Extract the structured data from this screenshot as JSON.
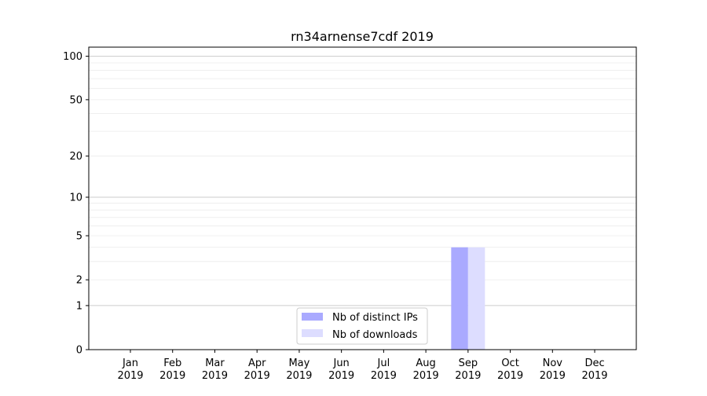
{
  "chart_data": {
    "type": "bar",
    "title": "rn34arnense7cdf 2019",
    "xlabel": "",
    "ylabel": "",
    "yscale": "log(1+y)",
    "ylim": [
      0,
      115
    ],
    "yticks": [
      0,
      1,
      2,
      5,
      10,
      20,
      50,
      100
    ],
    "ytick_labels": [
      "0",
      "1",
      "2",
      "5",
      "10",
      "20",
      "50",
      "100"
    ],
    "grid": true,
    "categories": [
      "Jan\n2019",
      "Feb\n2019",
      "Mar\n2019",
      "Apr\n2019",
      "May\n2019",
      "Jun\n2019",
      "Jul\n2019",
      "Aug\n2019",
      "Sep\n2019",
      "Oct\n2019",
      "Nov\n2019",
      "Dec\n2019"
    ],
    "category_months": [
      "Jan",
      "Feb",
      "Mar",
      "Apr",
      "May",
      "Jun",
      "Jul",
      "Aug",
      "Sep",
      "Oct",
      "Nov",
      "Dec"
    ],
    "category_year": "2019",
    "series": [
      {
        "name": "Nb of distinct IPs",
        "color": "#aaaaff",
        "values": [
          0,
          0,
          0,
          0,
          0,
          0,
          0,
          0,
          4,
          0,
          0,
          0
        ]
      },
      {
        "name": "Nb of downloads",
        "color": "#ddddff",
        "values": [
          0,
          0,
          0,
          0,
          0,
          0,
          0,
          0,
          4,
          0,
          0,
          0
        ]
      }
    ],
    "legend_placement": "lower-center"
  }
}
